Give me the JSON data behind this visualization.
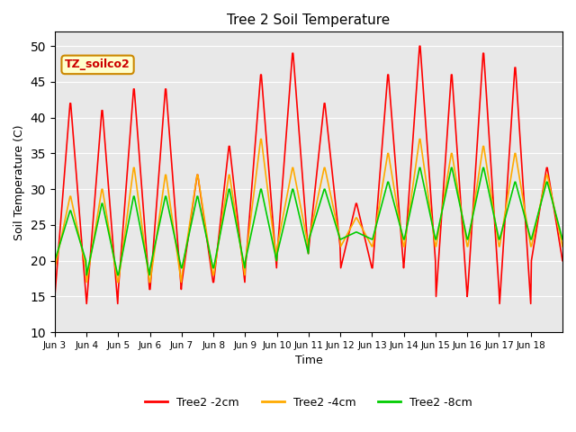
{
  "title": "Tree 2 Soil Temperature",
  "xlabel": "Time",
  "ylabel": "Soil Temperature (C)",
  "ylim": [
    10,
    52
  ],
  "yticks": [
    10,
    15,
    20,
    25,
    30,
    35,
    40,
    45,
    50
  ],
  "annotation_text": "TZ_soilco2",
  "bg_color": "#e8e8e8",
  "line_colors": {
    "2cm": "#ff0000",
    "4cm": "#ffaa00",
    "8cm": "#00cc00"
  },
  "legend_labels": [
    "Tree2 -2cm",
    "Tree2 -4cm",
    "Tree2 -8cm"
  ],
  "xtick_labels": [
    "Jun 3",
    "Jun 4",
    "Jun 5",
    "Jun 6",
    "Jun 7",
    "Jun 8",
    "Jun 9",
    "Jun 10",
    "Jun 11",
    "Jun 12",
    "Jun 13",
    "Jun 14",
    "Jun 15",
    "Jun 16",
    "Jun 17",
    "Jun 18"
  ],
  "days": 16,
  "points_per_day": 48,
  "peaks_2cm": [
    42,
    41,
    44,
    44,
    32,
    36,
    46,
    49,
    42,
    28,
    46,
    50,
    46,
    49,
    47,
    33
  ],
  "troughs_2cm": [
    15,
    14,
    16,
    16,
    17,
    17,
    19,
    21,
    22,
    19,
    19,
    20,
    15,
    16,
    14,
    20
  ],
  "peaks_4cm": [
    29,
    30,
    33,
    32,
    32,
    32,
    37,
    33,
    33,
    26,
    35,
    37,
    35,
    36,
    35,
    32
  ],
  "troughs_4cm": [
    19,
    17,
    17,
    17,
    18,
    18,
    20,
    22,
    23,
    22,
    22,
    22,
    22,
    22,
    22,
    22
  ],
  "peaks_8cm": [
    27,
    28,
    29,
    29,
    29,
    30,
    30,
    30,
    30,
    24,
    31,
    33,
    33,
    33,
    31,
    31
  ],
  "troughs_8cm": [
    20,
    18,
    18,
    19,
    19,
    19,
    20,
    21,
    23,
    23,
    23,
    23,
    23,
    23,
    23,
    23
  ]
}
